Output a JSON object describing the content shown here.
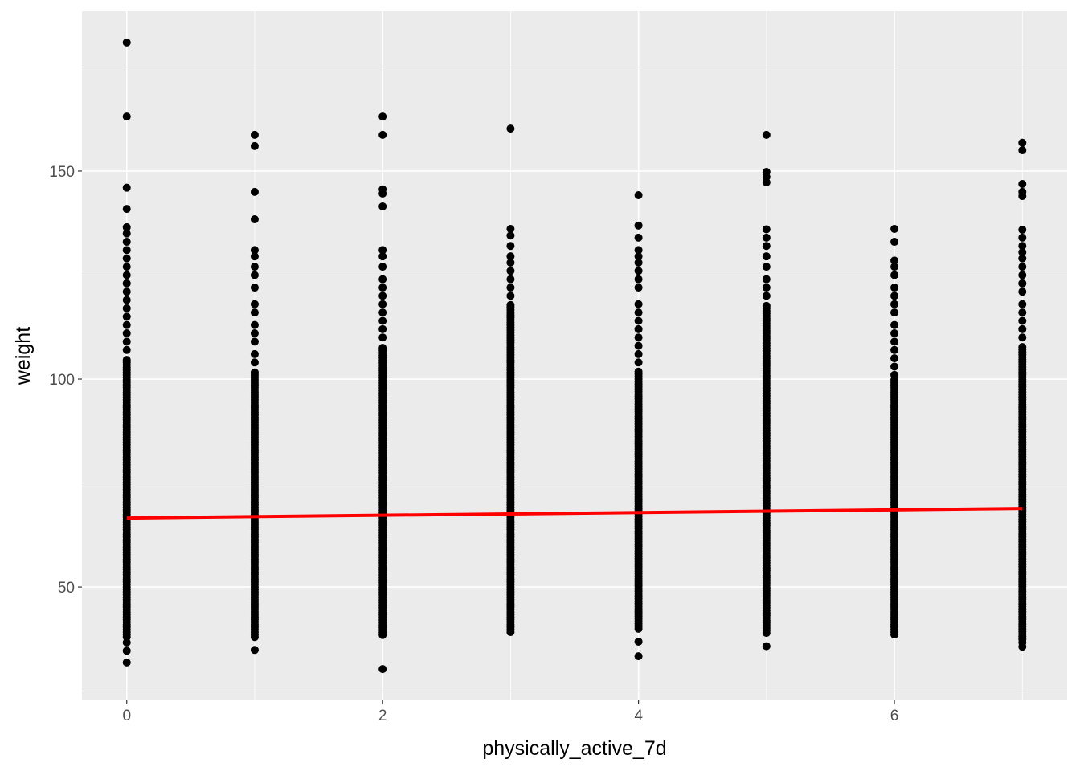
{
  "chart_data": {
    "type": "scatter",
    "title": "",
    "xlabel": "physically_active_7d",
    "ylabel": "weight",
    "xlim": [
      -0.35,
      7.35
    ],
    "ylim": [
      22.8,
      188.4
    ],
    "grid": true,
    "x_ticks": [
      0,
      2,
      4,
      6
    ],
    "x_tick_labels": [
      "0",
      "2",
      "4",
      "6"
    ],
    "y_ticks": [
      50,
      100,
      150
    ],
    "y_tick_labels": [
      "50",
      "100",
      "150"
    ],
    "point_color": "#000000",
    "panel_color": "#EBEBEB",
    "columns": [
      {
        "x": 0,
        "dense_range": [
          38,
          105
        ],
        "points": [
          180.9,
          163.1,
          146,
          140.9,
          136.5,
          135,
          133,
          131,
          129,
          127,
          125,
          123,
          121,
          119,
          117,
          115,
          113,
          111,
          109,
          107,
          36.7,
          34.7,
          31.9
        ]
      },
      {
        "x": 1,
        "dense_range": [
          38,
          102
        ],
        "points": [
          158.7,
          156,
          145,
          138.4,
          131,
          129.5,
          127,
          125,
          122,
          118,
          116,
          113,
          111,
          109,
          106,
          104,
          34.9
        ]
      },
      {
        "x": 2,
        "dense_range": [
          38.5,
          108
        ],
        "points": [
          163.1,
          158.7,
          145.6,
          144.6,
          141.5,
          131,
          129.5,
          127,
          124,
          122,
          120,
          118,
          116,
          114,
          112,
          110,
          30.3
        ]
      },
      {
        "x": 3,
        "dense_range": [
          39.2,
          118
        ],
        "points": [
          160.2,
          136.1,
          134.5,
          132,
          129.5,
          128,
          126,
          124,
          122,
          120
        ]
      },
      {
        "x": 4,
        "dense_range": [
          40,
          102
        ],
        "points": [
          144.2,
          136.9,
          134,
          131,
          129.5,
          128,
          126,
          124,
          122,
          118,
          116,
          114,
          112,
          110,
          108,
          106,
          104,
          36.9,
          33.4
        ]
      },
      {
        "x": 5,
        "dense_range": [
          39,
          118
        ],
        "points": [
          158.7,
          149.8,
          148.6,
          147.3,
          136,
          134,
          132,
          129.5,
          127,
          124,
          122,
          120,
          35.8
        ]
      },
      {
        "x": 6,
        "dense_range": [
          38.6,
          100
        ],
        "points": [
          136.1,
          133,
          128.5,
          127,
          125,
          122,
          120,
          118,
          116,
          113,
          111,
          109,
          107,
          105,
          103,
          101
        ]
      },
      {
        "x": 7,
        "dense_range": [
          37.5,
          108
        ],
        "points": [
          156.8,
          155,
          146.9,
          145,
          144,
          135.9,
          134,
          132,
          130.5,
          129,
          127,
          125,
          123,
          121,
          118,
          116,
          114,
          112,
          110,
          36.7,
          35.7
        ]
      }
    ],
    "fit_line": {
      "color": "#FF0000",
      "x": [
        0,
        7
      ],
      "y": [
        66.6,
        68.9
      ]
    }
  }
}
